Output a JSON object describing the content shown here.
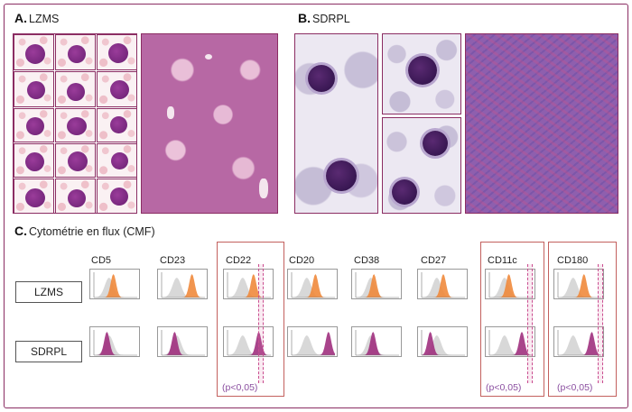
{
  "section_a": {
    "letter": "A.",
    "title": "LZMS"
  },
  "section_b": {
    "letter": "B.",
    "title": "SDRPL"
  },
  "section_c": {
    "letter": "C.",
    "title": "Cytométrie en flux (CMF)"
  },
  "rows": [
    "LZMS",
    "SDRPL"
  ],
  "markers": [
    "CD5",
    "CD23",
    "CD22",
    "CD20",
    "CD38",
    "CD27",
    "CD11c",
    "CD180"
  ],
  "highlighted": [
    "CD22",
    "CD11c",
    "CD180"
  ],
  "pvalue": "(p<0,05)",
  "colors": {
    "frame": "#8b2d63",
    "lzms": "#f08a3c",
    "sdrpl": "#a0307e",
    "control": "#c8c8c8",
    "highlight": "#c3605e",
    "pvalue": "#8b4fa0"
  }
}
